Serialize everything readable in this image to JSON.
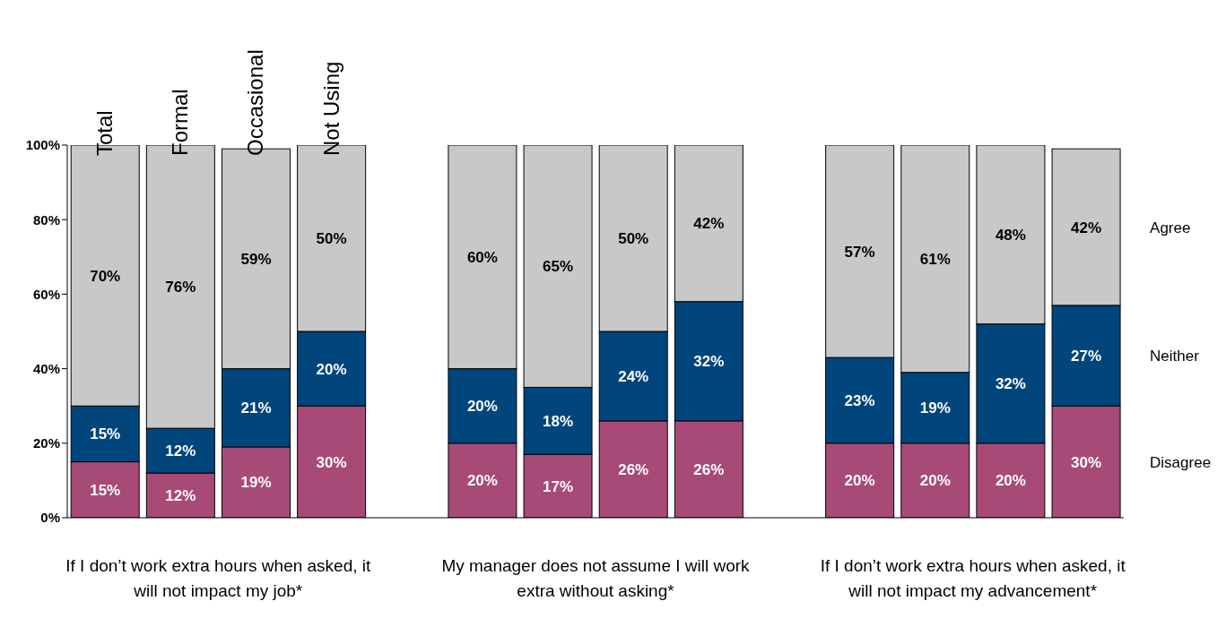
{
  "chart_data": {
    "type": "bar",
    "stacked": true,
    "categories": [
      "Total",
      "Formal",
      "Occasional",
      "Not Using",
      null,
      null,
      null,
      null,
      null,
      null,
      null,
      null,
      null,
      null
    ],
    "series": [
      {
        "name": "Disagree",
        "color": "#a84a78",
        "values": [
          15,
          12,
          19,
          30,
          null,
          20,
          17,
          26,
          26,
          null,
          20,
          20,
          20,
          30
        ],
        "value_labels": [
          "15%",
          "12%",
          "19%",
          "30%",
          null,
          "20%",
          "17%",
          "26%",
          "26%",
          null,
          "20%",
          "20%",
          "20%",
          "30%"
        ]
      },
      {
        "name": "Neither",
        "color": "#00457c",
        "values": [
          15,
          12,
          21,
          20,
          null,
          20,
          18,
          24,
          32,
          null,
          23,
          19,
          32,
          27
        ],
        "value_labels": [
          "15%",
          "12%",
          "21%",
          "20%",
          null,
          "20%",
          "18%",
          "24%",
          "32%",
          null,
          "23%",
          "19%",
          "32%",
          "27%"
        ]
      },
      {
        "name": "Agree",
        "color": "#c8c8c8",
        "values": [
          70,
          76,
          59,
          50,
          null,
          60,
          65,
          50,
          42,
          null,
          57,
          61,
          48,
          42
        ],
        "value_labels": [
          "70%",
          "76%",
          "59%",
          "50%",
          null,
          "60%",
          "65%",
          "50%",
          "42%",
          null,
          "57%",
          "61%",
          "48%",
          "42%"
        ]
      }
    ],
    "ylim": [
      0,
      100
    ],
    "yticks": [
      {
        "value": 0,
        "label": "0%"
      },
      {
        "value": 20,
        "label": "20%"
      },
      {
        "value": 40,
        "label": "40%"
      },
      {
        "value": 60,
        "label": "60%"
      },
      {
        "value": 80,
        "label": "80%"
      },
      {
        "value": 100,
        "label": "100%"
      }
    ],
    "annotations": [
      "If I don’t work extra hours when asked, it will not impact my job*",
      "My manager does not assume I will work extra without asking*",
      "If I don’t work extra hours when asked, it will not impact my advancement*"
    ]
  }
}
